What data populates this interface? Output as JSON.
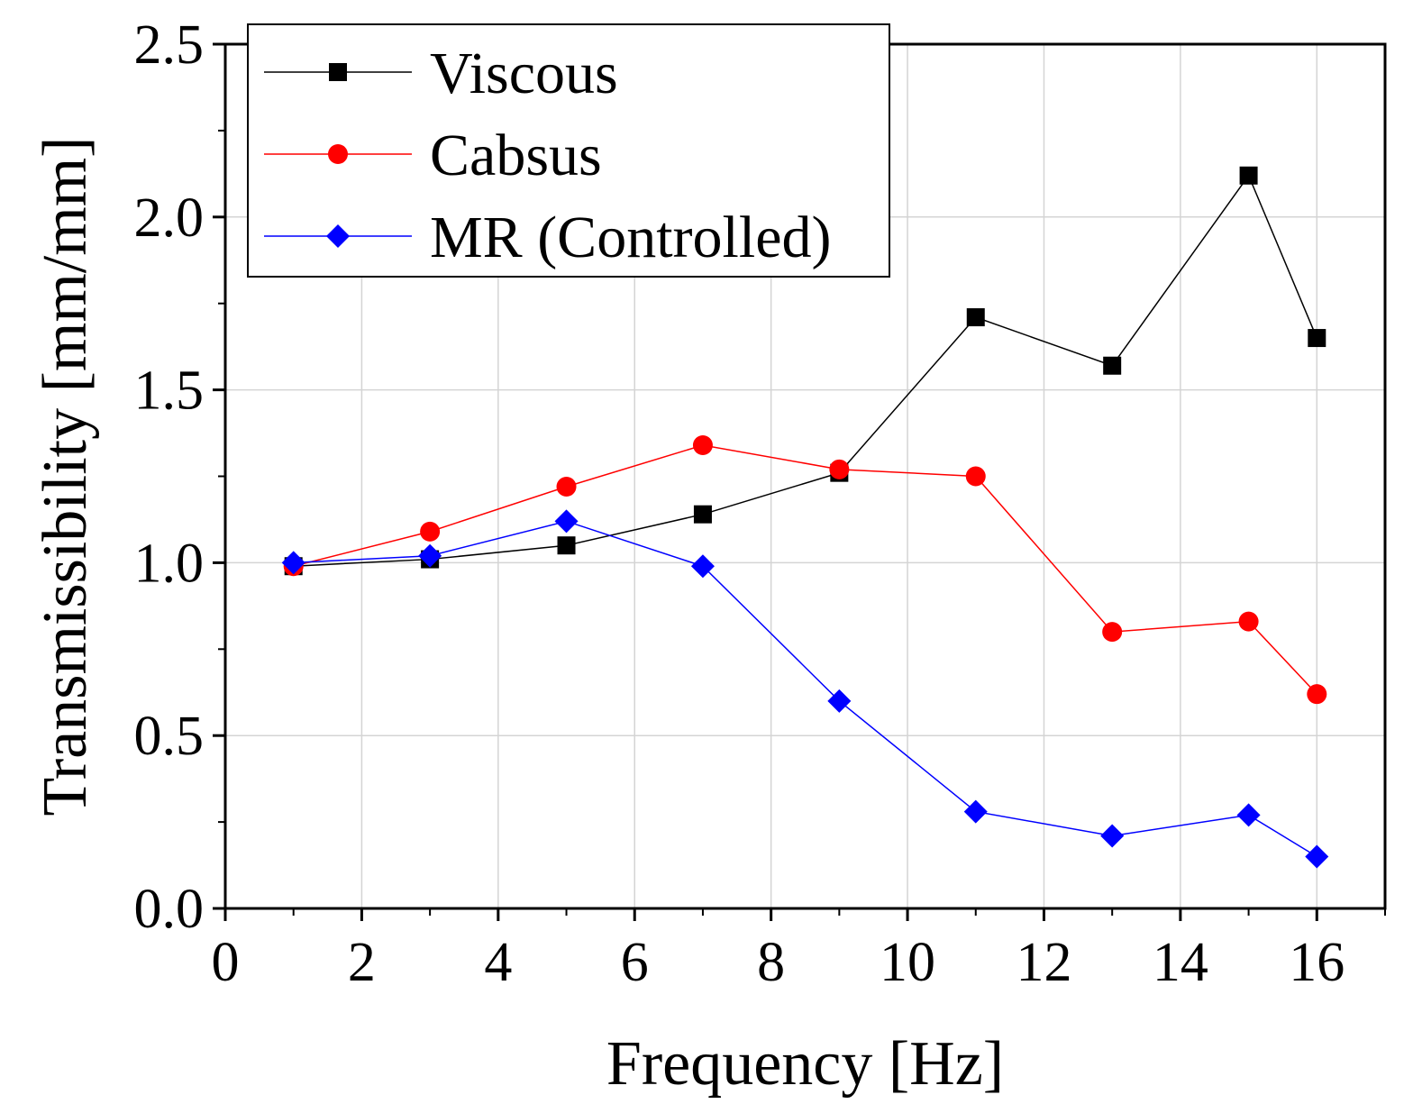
{
  "chart_data": {
    "type": "line",
    "title": "",
    "xlabel": "Frequency [Hz]",
    "ylabel": "Transmissibility [mm/mm]",
    "xlim": [
      0,
      17
    ],
    "ylim": [
      0,
      2.5
    ],
    "x_ticks": [
      0,
      2,
      4,
      6,
      8,
      10,
      12,
      14,
      16
    ],
    "x_tick_labels": [
      "0",
      "2",
      "4",
      "6",
      "8",
      "10",
      "12",
      "14",
      "16"
    ],
    "y_ticks": [
      0,
      0.5,
      1.0,
      1.5,
      2.0,
      2.5
    ],
    "y_tick_labels": [
      "0.0",
      "0.5",
      "1.0",
      "1.5",
      "2.0",
      "2.5"
    ],
    "grid": true,
    "legend_position": "top-left",
    "x": [
      1,
      3,
      5,
      7,
      9,
      11,
      13,
      15,
      16
    ],
    "series": [
      {
        "name": "Viscous",
        "color": "#000000",
        "marker": "square",
        "values": [
          0.99,
          1.01,
          1.05,
          1.14,
          1.26,
          1.71,
          1.57,
          2.12,
          1.65
        ]
      },
      {
        "name": "Cabsus",
        "color": "#ff0000",
        "marker": "circle",
        "values": [
          0.99,
          1.09,
          1.22,
          1.34,
          1.27,
          1.25,
          0.8,
          0.83,
          0.62
        ]
      },
      {
        "name": "MR (Controlled)",
        "color": "#0000ff",
        "marker": "diamond",
        "values": [
          1.0,
          1.02,
          1.12,
          0.99,
          0.6,
          0.28,
          0.21,
          0.27,
          0.15
        ]
      }
    ]
  }
}
